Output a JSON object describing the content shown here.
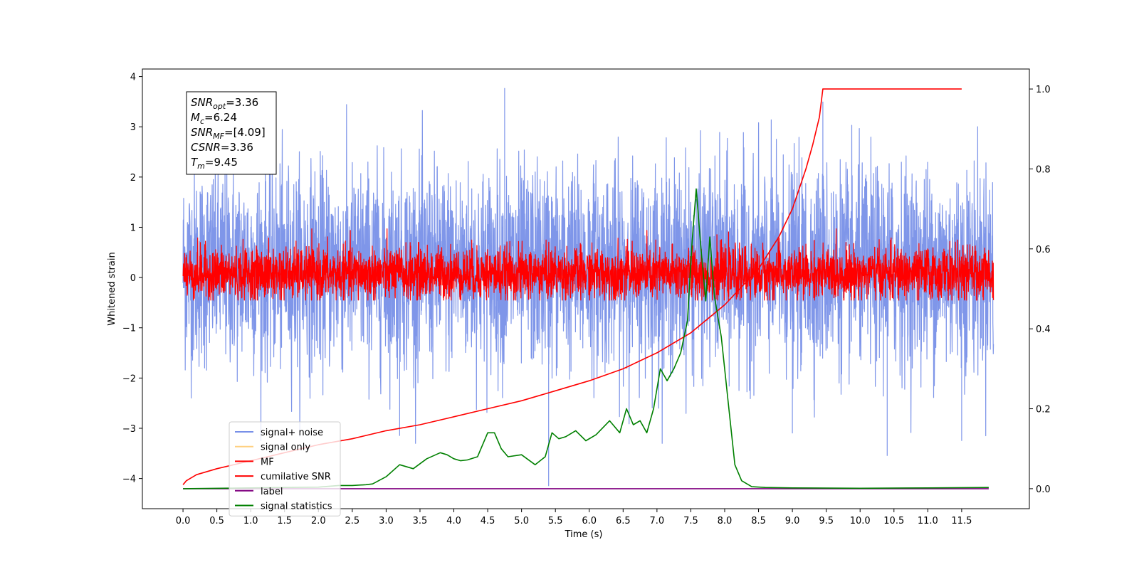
{
  "chart_data": {
    "type": "line",
    "xlabel": "Time (s)",
    "ylabel": "Whitened strain",
    "xlim": [
      -0.6,
      12.5
    ],
    "ylim": [
      -4.6,
      4.15
    ],
    "y2lim": [
      -0.05,
      1.05
    ],
    "x_ticks": [
      "0.0",
      "0.5",
      "1.0",
      "1.5",
      "2.0",
      "2.5",
      "3.0",
      "3.5",
      "4.0",
      "4.5",
      "5.0",
      "5.5",
      "6.0",
      "6.5",
      "7.0",
      "7.5",
      "8.0",
      "8.5",
      "9.0",
      "9.5",
      "10.0",
      "10.5",
      "11.0",
      "11.5"
    ],
    "y_ticks": [
      "4",
      "3",
      "2",
      "1",
      "0",
      "−1",
      "−2",
      "−3",
      "−4"
    ],
    "y2_ticks": [
      "1.0",
      "0.8",
      "0.6",
      "0.4",
      "0.2",
      "0.0"
    ],
    "info_box": [
      {
        "sym": "SNR",
        "sub": "opt",
        "val": "=3.36"
      },
      {
        "sym": "M",
        "sub": "c",
        "val": "=6.24"
      },
      {
        "sym": "SNR",
        "sub": "MF",
        "val": "=[4.09]"
      },
      {
        "sym": "CSNR",
        "sub": "",
        "val": "=3.36"
      },
      {
        "sym": "T",
        "sub": "m",
        "val": "=9.45"
      }
    ],
    "legend": {
      "placement": "lower-left",
      "entries": [
        {
          "label": "signal+ noise",
          "color": "#7890e8"
        },
        {
          "label": "signal only",
          "color": "#ffd080"
        },
        {
          "label": "MF",
          "color": "#ff0000"
        },
        {
          "label": "cumilative SNR",
          "color": "#ff0000"
        },
        {
          "label": "label",
          "color": "#800080"
        },
        {
          "label": "signal statistics",
          "color": "#008000"
        }
      ]
    },
    "series": [
      {
        "label": "signal+ noise",
        "axis": "left",
        "color": "#7890e8",
        "noise_band": {
          "x_start": 0.0,
          "x_end": 11.97,
          "dense_range": [
            -1.6,
            2.0
          ],
          "spike_range": [
            -3.3,
            3.8
          ]
        },
        "spikes": [
          [
            4.75,
            3.77
          ],
          [
            5.4,
            -4.15
          ],
          [
            9.45,
            3.5
          ],
          [
            10.4,
            -3.55
          ],
          [
            3.2,
            -3.15
          ],
          [
            9.0,
            -3.1
          ],
          [
            11.5,
            -3.25
          ]
        ]
      },
      {
        "label": "MF",
        "axis": "left",
        "color": "#ff0000",
        "noise_band": {
          "x_start": 0.0,
          "x_end": 11.97,
          "dense_range": [
            -0.4,
            0.55
          ],
          "spike_range": [
            -0.45,
            0.97
          ]
        }
      },
      {
        "label": "cumilative SNR",
        "axis": "right",
        "color": "#ff0000",
        "x": [
          0.0,
          0.05,
          0.2,
          0.5,
          1.0,
          1.5,
          2.0,
          2.5,
          3.0,
          3.5,
          4.0,
          4.5,
          5.0,
          5.5,
          6.0,
          6.5,
          7.0,
          7.5,
          8.0,
          8.5,
          8.8,
          9.0,
          9.2,
          9.3,
          9.4,
          9.45,
          11.5
        ],
        "y": [
          0.01,
          0.02,
          0.035,
          0.05,
          0.07,
          0.09,
          0.11,
          0.125,
          0.145,
          0.16,
          0.18,
          0.2,
          0.22,
          0.245,
          0.27,
          0.3,
          0.34,
          0.39,
          0.46,
          0.55,
          0.63,
          0.7,
          0.8,
          0.86,
          0.93,
          1.0,
          1.0
        ]
      },
      {
        "label": "label",
        "axis": "right",
        "color": "#800080",
        "x": [
          0.0,
          11.9
        ],
        "y": [
          0.0,
          0.0
        ]
      },
      {
        "label": "signal statistics",
        "axis": "right",
        "color": "#008000",
        "x": [
          0.0,
          1.0,
          2.0,
          2.3,
          2.5,
          2.7,
          2.8,
          3.0,
          3.2,
          3.4,
          3.6,
          3.8,
          3.9,
          4.0,
          4.1,
          4.2,
          4.35,
          4.5,
          4.6,
          4.7,
          4.8,
          5.0,
          5.2,
          5.35,
          5.45,
          5.55,
          5.65,
          5.8,
          5.95,
          6.1,
          6.3,
          6.45,
          6.55,
          6.65,
          6.75,
          6.85,
          6.95,
          7.05,
          7.15,
          7.25,
          7.35,
          7.45,
          7.52,
          7.58,
          7.65,
          7.72,
          7.78,
          7.85,
          7.95,
          8.05,
          8.15,
          8.25,
          8.4,
          8.6,
          9.0,
          10.0,
          11.0,
          11.9
        ],
        "y": [
          0.0,
          0.002,
          0.004,
          0.008,
          0.008,
          0.01,
          0.012,
          0.03,
          0.06,
          0.05,
          0.075,
          0.09,
          0.085,
          0.075,
          0.07,
          0.072,
          0.08,
          0.14,
          0.14,
          0.1,
          0.08,
          0.085,
          0.06,
          0.08,
          0.14,
          0.125,
          0.13,
          0.145,
          0.12,
          0.135,
          0.17,
          0.14,
          0.2,
          0.16,
          0.17,
          0.14,
          0.2,
          0.3,
          0.27,
          0.3,
          0.34,
          0.42,
          0.62,
          0.75,
          0.6,
          0.47,
          0.63,
          0.48,
          0.38,
          0.22,
          0.06,
          0.02,
          0.005,
          0.003,
          0.002,
          0.001,
          0.002,
          0.003
        ]
      }
    ]
  }
}
